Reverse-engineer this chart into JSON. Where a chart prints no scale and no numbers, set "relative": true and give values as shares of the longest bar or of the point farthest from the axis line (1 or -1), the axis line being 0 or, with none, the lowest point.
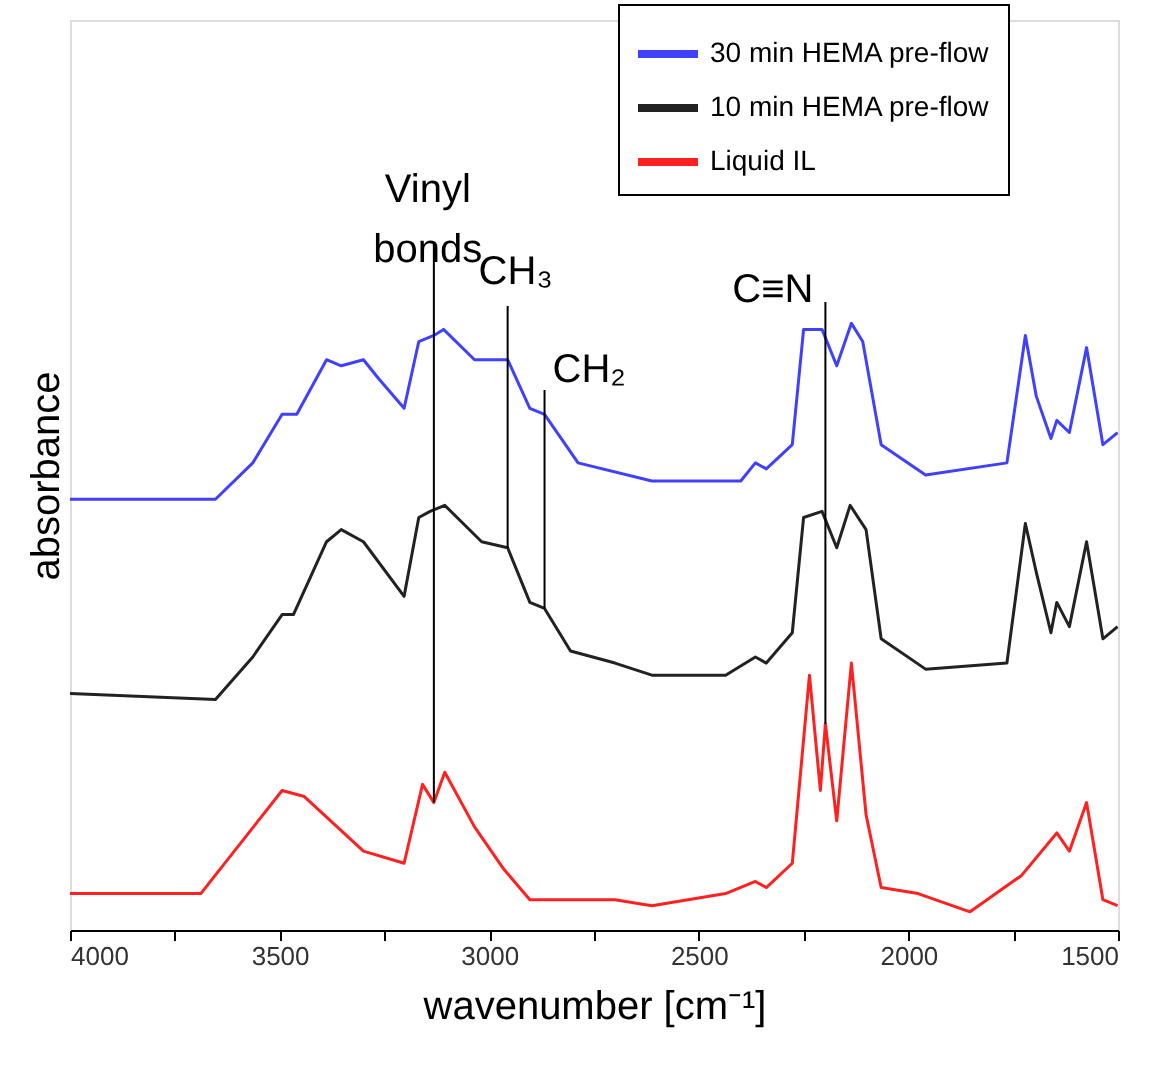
{
  "chart_data": {
    "type": "line",
    "relative": true,
    "xlabel": "wavenumber [cm⁻¹]",
    "ylabel": "absorbance",
    "xlim": [
      4000,
      1500
    ],
    "xticks": [
      4000,
      {
        "value": 3750,
        "label": null
      },
      3500,
      {
        "value": 3250,
        "label": null
      },
      3000,
      {
        "value": 2750,
        "label": null
      },
      2500,
      {
        "value": 2250,
        "label": null
      },
      2000,
      {
        "value": 1750,
        "label": null
      },
      1500
    ],
    "grid": false,
    "legend": "top right",
    "tick_labels": "x",
    "marker": "none",
    "line_style": "solid",
    "annotations": [
      {
        "text": "Vinyl\nbonds",
        "x": 3132,
        "y": 0.21
      },
      {
        "text": "CH₃",
        "x": 2956,
        "y": 0.63
      },
      {
        "text": "CH₂",
        "x": 2868,
        "y": 0.53
      },
      {
        "text": "C≡N",
        "x": 2198,
        "y": 0.34
      }
    ],
    "series": [
      {
        "name": "30 min HEMA pre-flow",
        "color": "#4040ff",
        "x": [
          4000,
          3900,
          3653,
          3564,
          3494,
          3459,
          3388,
          3353,
          3300,
          3265,
          3203,
          3168,
          3132,
          3109,
          3035,
          2956,
          2903,
          2868,
          2788,
          2612,
          2400,
          2365,
          2339,
          2277,
          2250,
          2206,
          2171,
          2136,
          2109,
          2065,
          1959,
          1765,
          1721,
          1695,
          1660,
          1646,
          1616,
          1575,
          1536,
          1501
        ],
        "values": [
          0.71,
          0.71,
          0.71,
          0.77,
          0.85,
          0.85,
          0.94,
          0.93,
          0.94,
          0.91,
          0.86,
          0.97,
          0.98,
          0.99,
          0.94,
          0.94,
          0.86,
          0.85,
          0.77,
          0.74,
          0.74,
          0.77,
          0.76,
          0.8,
          0.99,
          0.99,
          0.93,
          1.0,
          0.97,
          0.8,
          0.75,
          0.77,
          0.98,
          0.88,
          0.81,
          0.84,
          0.82,
          0.96,
          0.8,
          0.82
        ]
      },
      {
        "name": "10 min HEMA pre-flow",
        "color": "#222222",
        "x": [
          4000,
          3653,
          3564,
          3494,
          3467,
          3388,
          3353,
          3300,
          3203,
          3168,
          3141,
          3106,
          3018,
          2956,
          2903,
          2868,
          2806,
          2700,
          2612,
          2436,
          2365,
          2339,
          2277,
          2250,
          2206,
          2171,
          2139,
          2101,
          2065,
          1959,
          1765,
          1721,
          1695,
          1660,
          1646,
          1616,
          1575,
          1536,
          1501
        ],
        "values": [
          0.39,
          0.38,
          0.45,
          0.52,
          0.52,
          0.64,
          0.66,
          0.64,
          0.55,
          0.68,
          0.69,
          0.7,
          0.64,
          0.63,
          0.54,
          0.53,
          0.46,
          0.44,
          0.42,
          0.42,
          0.45,
          0.44,
          0.49,
          0.68,
          0.69,
          0.63,
          0.7,
          0.66,
          0.48,
          0.43,
          0.44,
          0.67,
          0.59,
          0.49,
          0.54,
          0.5,
          0.64,
          0.48,
          0.5
        ]
      },
      {
        "name": "Liquid IL",
        "color": "#ff2020",
        "x": [
          4000,
          3688,
          3494,
          3441,
          3300,
          3203,
          3159,
          3132,
          3106,
          3035,
          2965,
          2903,
          2700,
          2612,
          2436,
          2365,
          2339,
          2277,
          2236,
          2210,
          2198,
          2171,
          2136,
          2101,
          2065,
          1977,
          1853,
          1730,
          1646,
          1616,
          1575,
          1536,
          1501
        ],
        "values": [
          0.06,
          0.06,
          0.23,
          0.22,
          0.13,
          0.11,
          0.24,
          0.21,
          0.26,
          0.17,
          0.1,
          0.05,
          0.05,
          0.04,
          0.06,
          0.08,
          0.07,
          0.11,
          0.42,
          0.23,
          0.34,
          0.18,
          0.44,
          0.19,
          0.07,
          0.06,
          0.03,
          0.09,
          0.16,
          0.13,
          0.21,
          0.05,
          0.04
        ]
      }
    ]
  }
}
